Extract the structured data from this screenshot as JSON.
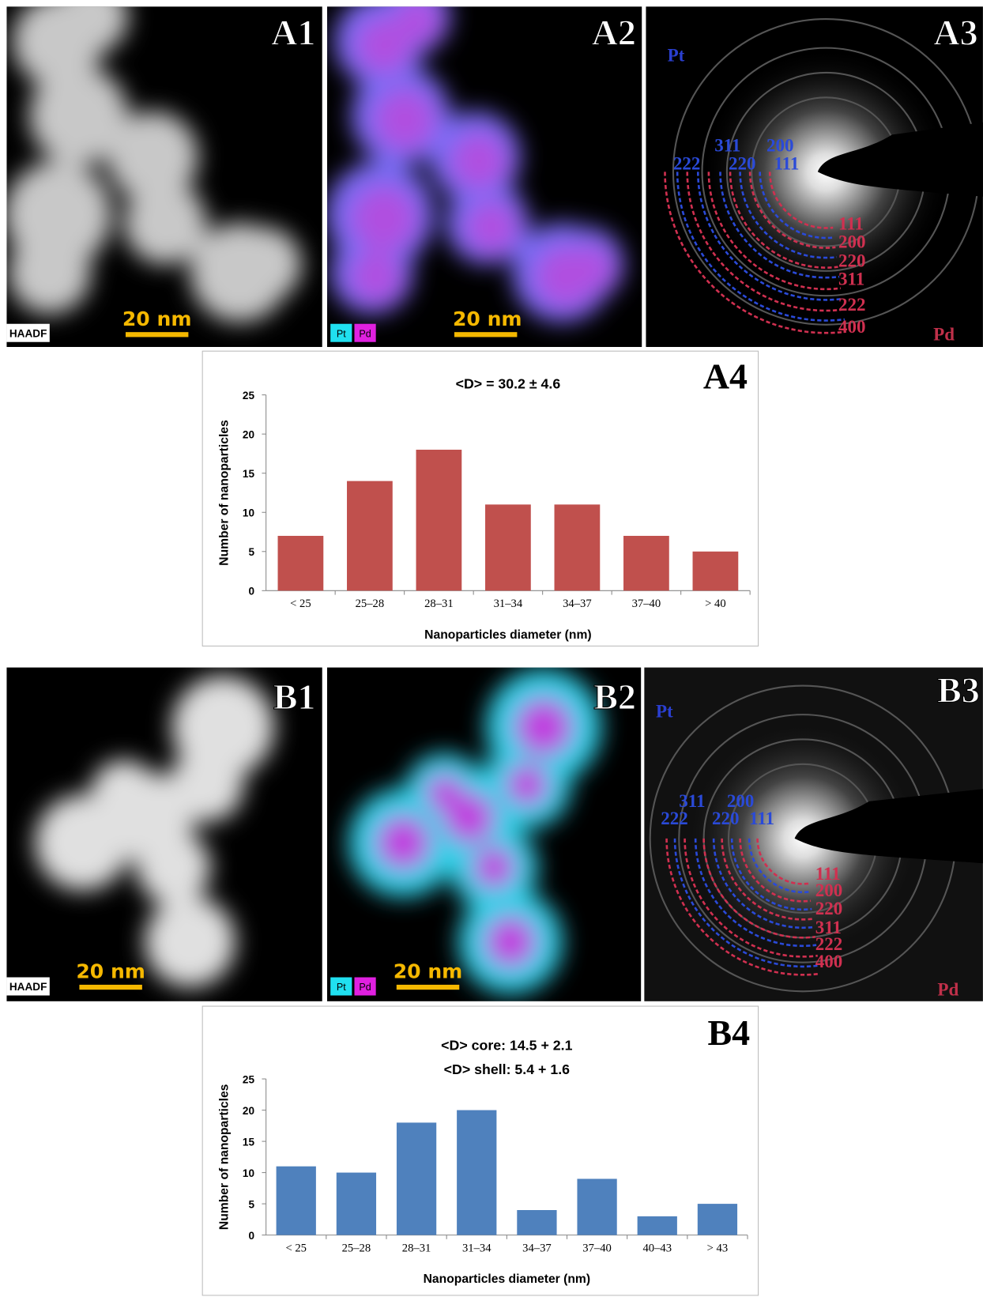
{
  "panels": [
    {
      "label": "A1",
      "detector": "HAADF",
      "scale_bar": "20 nm"
    },
    {
      "label": "A2",
      "scale_bar": "20 nm",
      "elements": [
        "Pt",
        "Pd"
      ]
    },
    {
      "label": "A3",
      "pattern_labels": [
        "Pt",
        "Pd"
      ],
      "pt_rings": [
        "311",
        "200",
        "222",
        "220",
        "111"
      ],
      "pd_rings": [
        "111",
        "200",
        "220",
        "311",
        "222",
        "400"
      ]
    },
    {
      "label": "B1",
      "detector": "HAADF",
      "scale_bar": "20 nm"
    },
    {
      "label": "B2",
      "scale_bar": "20 nm",
      "elements": [
        "Pt",
        "Pd"
      ]
    },
    {
      "label": "B3",
      "pattern_labels": [
        "Pt",
        "Pd"
      ],
      "pt_rings": [
        "311",
        "200",
        "222",
        "220",
        "111"
      ],
      "pd_rings": [
        "111",
        "200",
        "220",
        "311",
        "222",
        "400"
      ]
    }
  ],
  "chart_data": [
    {
      "type": "bar",
      "panel_label": "A4",
      "title": "<D> = 30.2 ± 4.6",
      "x_label": "Nanoparticles diameter (nm)",
      "y_label": "Number of nanoparticles",
      "categories": [
        "< 25",
        "25–28",
        "28–31",
        "31–34",
        "34–37",
        "37–40",
        "> 40"
      ],
      "values": [
        7,
        14,
        18,
        11,
        11,
        7,
        5
      ],
      "color": "#c0504d",
      "ylim": [
        0,
        25
      ],
      "yticks": [
        0,
        5,
        10,
        15,
        20,
        25
      ]
    },
    {
      "type": "bar",
      "panel_label": "B4",
      "title": "<D> core: 14.5 + 2.1",
      "subtitle": "<D> shell: 5.4 + 1.6",
      "x_label": "Nanoparticles diameter (nm)",
      "y_label": "Number of nanoparticles",
      "categories": [
        "< 25",
        "25–28",
        "28–31",
        "31–34",
        "34–37",
        "37–40",
        "40–43",
        "> 43"
      ],
      "values": [
        11,
        10,
        18,
        20,
        4,
        9,
        3,
        5
      ],
      "color": "#4f81bd",
      "ylim": [
        0,
        25
      ],
      "yticks": [
        0,
        5,
        10,
        15,
        20,
        25
      ]
    }
  ]
}
